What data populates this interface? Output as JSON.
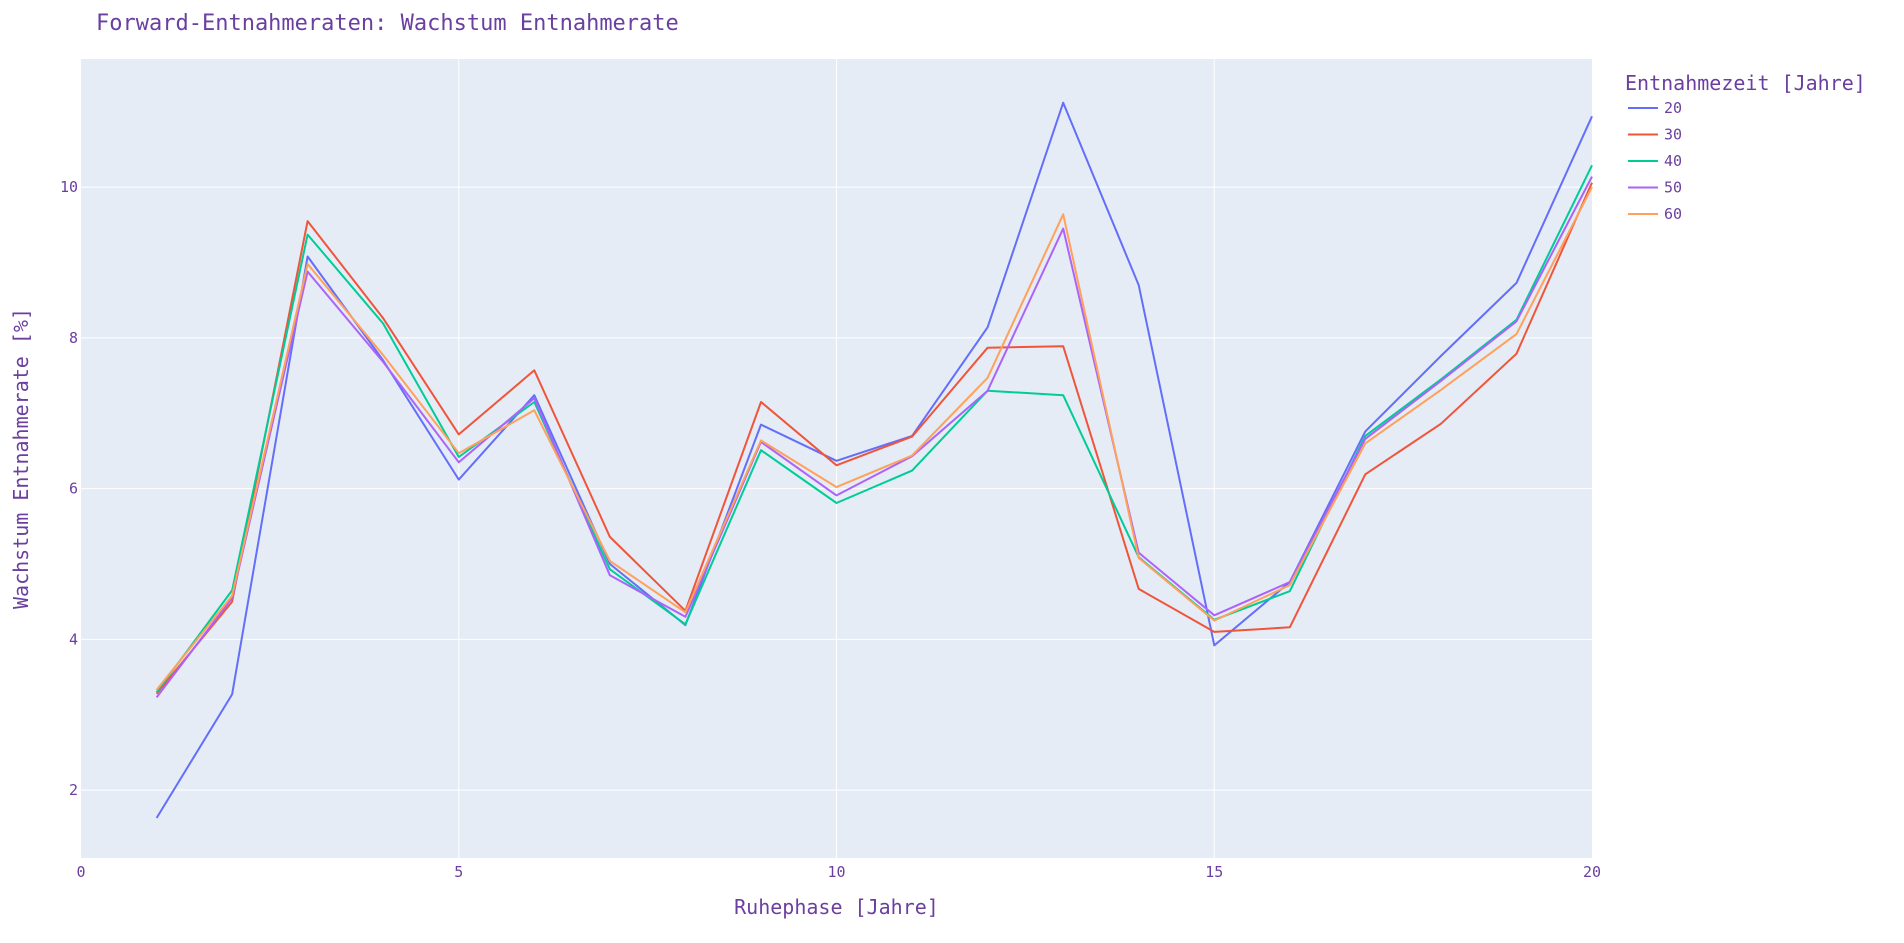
{
  "chart_data": {
    "type": "line",
    "title": "Forward-Entnahmeraten: Wachstum Entnahmerate",
    "xlabel": "Ruhephase [Jahre]",
    "ylabel": "Wachstum Entnahmerate [%]",
    "xlim": [
      0,
      20
    ],
    "ylim": [
      1.1,
      11.7
    ],
    "xticks": [
      0,
      5,
      10,
      15,
      20
    ],
    "yticks": [
      2,
      4,
      6,
      8,
      10
    ],
    "grid": true,
    "legend_title": "Entnahmezeit [Jahre]",
    "legend_position": "top-right outside",
    "text_color": "#6b3fa0",
    "plot_bg": "#e5ecf6",
    "x": [
      1,
      2,
      3,
      4,
      5,
      6,
      7,
      8,
      9,
      10,
      11,
      12,
      13,
      14,
      15,
      16,
      17,
      18,
      19,
      20
    ],
    "series": [
      {
        "name": "20",
        "color": "#636efa",
        "values": [
          1.63,
          3.27,
          9.08,
          7.7,
          6.12,
          7.24,
          5.0,
          4.19,
          6.85,
          6.37,
          6.7,
          8.14,
          11.12,
          8.7,
          3.92,
          4.76,
          6.76,
          7.76,
          8.73,
          10.94
        ]
      },
      {
        "name": "30",
        "color": "#ef553b",
        "values": [
          3.28,
          4.5,
          9.55,
          8.26,
          6.72,
          7.57,
          5.36,
          4.38,
          7.15,
          6.31,
          6.69,
          7.87,
          7.89,
          4.67,
          4.1,
          4.16,
          6.19,
          6.86,
          7.79,
          10.06
        ]
      },
      {
        "name": "40",
        "color": "#00cc96",
        "values": [
          3.3,
          4.65,
          9.37,
          8.19,
          6.42,
          7.15,
          4.93,
          4.2,
          6.51,
          5.81,
          6.24,
          7.3,
          7.24,
          5.09,
          4.26,
          4.64,
          6.7,
          7.45,
          8.24,
          10.29
        ]
      },
      {
        "name": "50",
        "color": "#ab63fa",
        "values": [
          3.23,
          4.55,
          8.88,
          7.68,
          6.35,
          7.2,
          4.85,
          4.3,
          6.62,
          5.91,
          6.43,
          7.3,
          9.45,
          5.15,
          4.32,
          4.76,
          6.66,
          7.43,
          8.22,
          10.14
        ]
      },
      {
        "name": "60",
        "color": "#ffa15a",
        "values": [
          3.33,
          4.58,
          8.98,
          7.77,
          6.47,
          7.04,
          5.04,
          4.36,
          6.64,
          6.02,
          6.44,
          7.47,
          9.64,
          5.08,
          4.25,
          4.72,
          6.6,
          7.31,
          8.05,
          10.0
        ]
      }
    ]
  }
}
